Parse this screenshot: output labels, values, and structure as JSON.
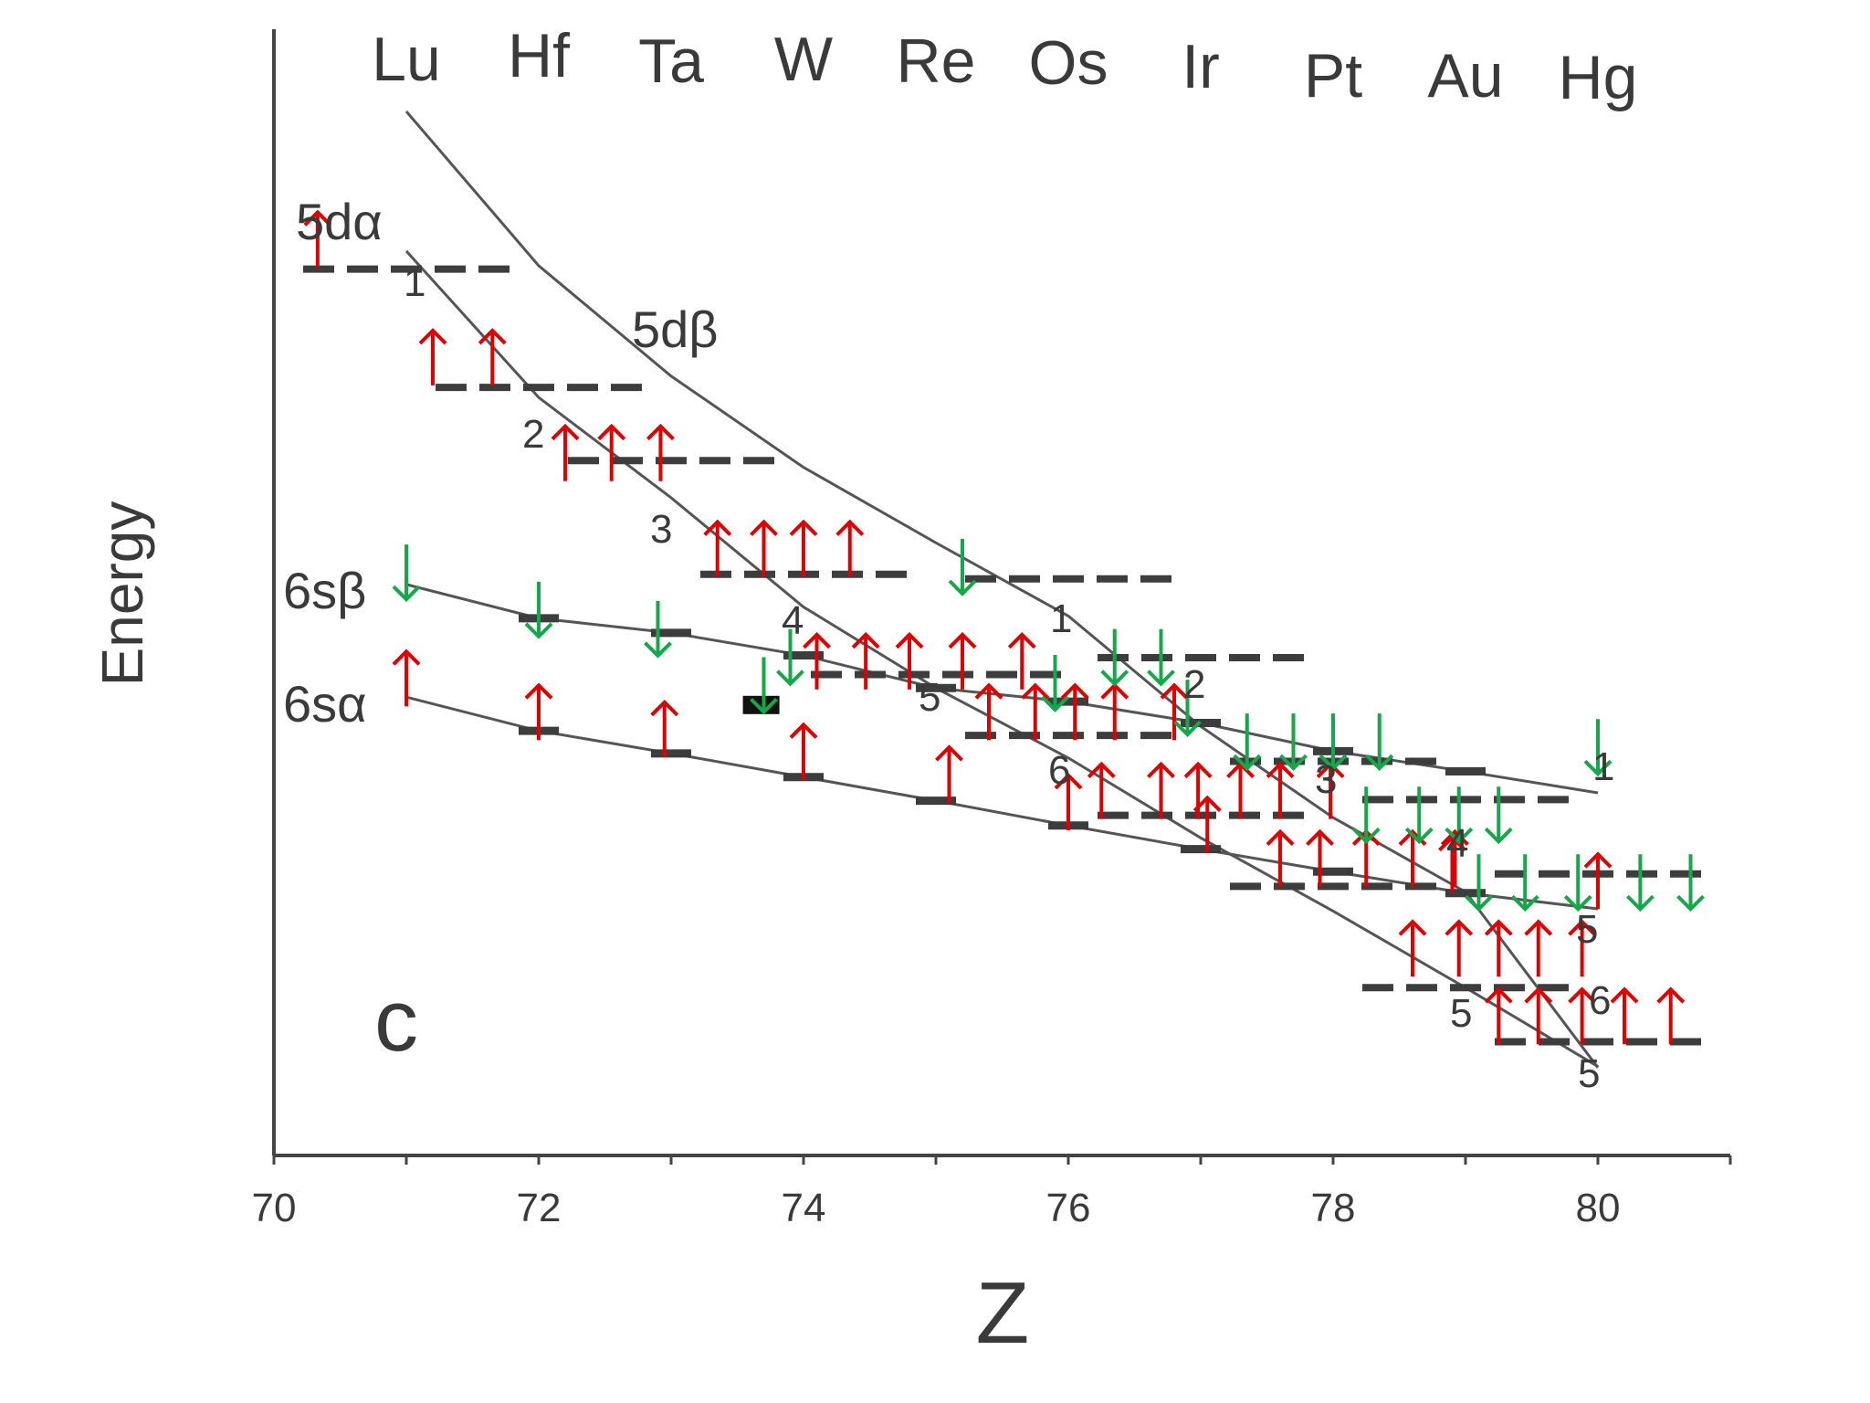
{
  "chart_data": {
    "type": "line",
    "panel_label": "c",
    "xlabel": "Z",
    "ylabel": "Energy",
    "xlim": [
      70,
      81
    ],
    "x_ticks": [
      70,
      72,
      74,
      76,
      78,
      80
    ],
    "ylim": [
      0,
      100
    ],
    "grid": false,
    "legend": "none",
    "elements": [
      "Lu",
      "Hf",
      "Ta",
      "W",
      "Re",
      "Os",
      "Ir",
      "Pt",
      "Au",
      "Hg"
    ],
    "series": [
      {
        "name": "5dα",
        "x": [
          71,
          72,
          73,
          74,
          75,
          76,
          77,
          78,
          79,
          80
        ],
        "y": [
          80.3,
          67.3,
          58.4,
          48.7,
          41.5,
          35.3,
          28.2,
          21.7,
          14.9,
          7.9
        ]
      },
      {
        "name": "5dβ",
        "x": [
          71,
          72,
          73,
          74,
          75,
          76,
          77,
          78,
          79,
          80
        ],
        "y": [
          92.7,
          79.0,
          69.2,
          61.1,
          54.4,
          47.9,
          38.1,
          30.0,
          23.4,
          7.8
        ]
      },
      {
        "name": "6sβ",
        "x": [
          71,
          72,
          73,
          74,
          75,
          76,
          77,
          78,
          79,
          80
        ],
        "y": [
          50.7,
          47.7,
          46.4,
          44.4,
          41.5,
          40.3,
          38.4,
          35.9,
          34.1,
          32.2
        ]
      },
      {
        "name": "6sα",
        "x": [
          71,
          72,
          73,
          74,
          75,
          76,
          77,
          78,
          79,
          80
        ],
        "y": [
          40.7,
          37.7,
          35.7,
          33.6,
          31.5,
          29.3,
          27.2,
          25.2,
          23.3,
          21.9
        ]
      }
    ],
    "annotations": [
      "1",
      "2",
      "3",
      "4",
      "5",
      "6",
      "1",
      "2",
      "3",
      "4",
      "5",
      "6",
      "5",
      "5",
      "1"
    ],
    "colors": {
      "axis": "#444444",
      "curve": "#555555",
      "level": "#3d3d3d",
      "spin_up": "#e00000",
      "spin_down": "#14a84a"
    }
  }
}
